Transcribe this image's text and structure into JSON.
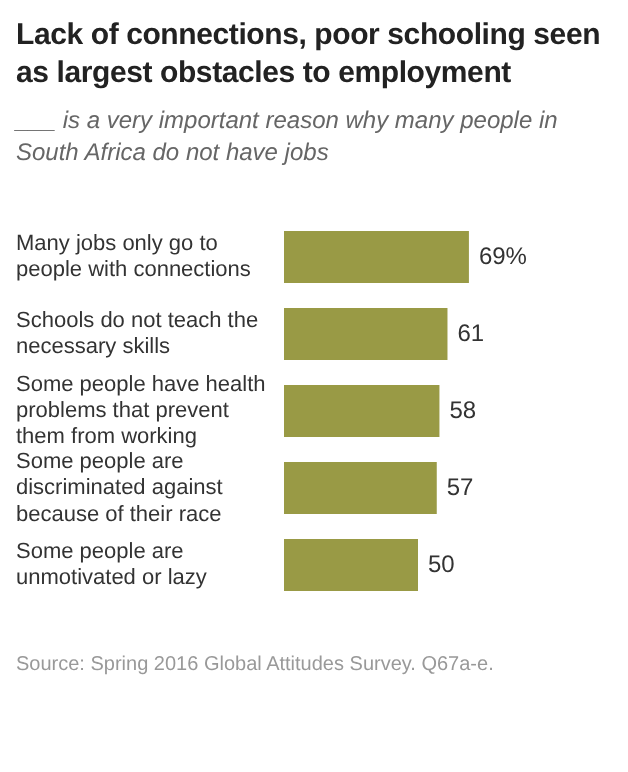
{
  "chart_data": {
    "type": "bar",
    "orientation": "horizontal",
    "title": "Lack of connections, poor schooling seen as largest obstacles to employment",
    "subtitle": "___ is a very important reason why many people in South Africa do not have jobs",
    "categories": [
      "Many jobs only go to people with connections",
      "Schools do not teach the necessary skills",
      "Some people have health problems that prevent them from working",
      "Some people are discriminated against because of their race",
      "Some people are unmotivated or lazy"
    ],
    "values": [
      69,
      61,
      58,
      57,
      50
    ],
    "value_labels": [
      "69%",
      "61",
      "58",
      "57",
      "50"
    ],
    "color": "#999a45",
    "grid": false,
    "legend": false,
    "annotations": [
      "Source: Spring 2016 Global Attitudes Survey. Q67a-e."
    ]
  }
}
